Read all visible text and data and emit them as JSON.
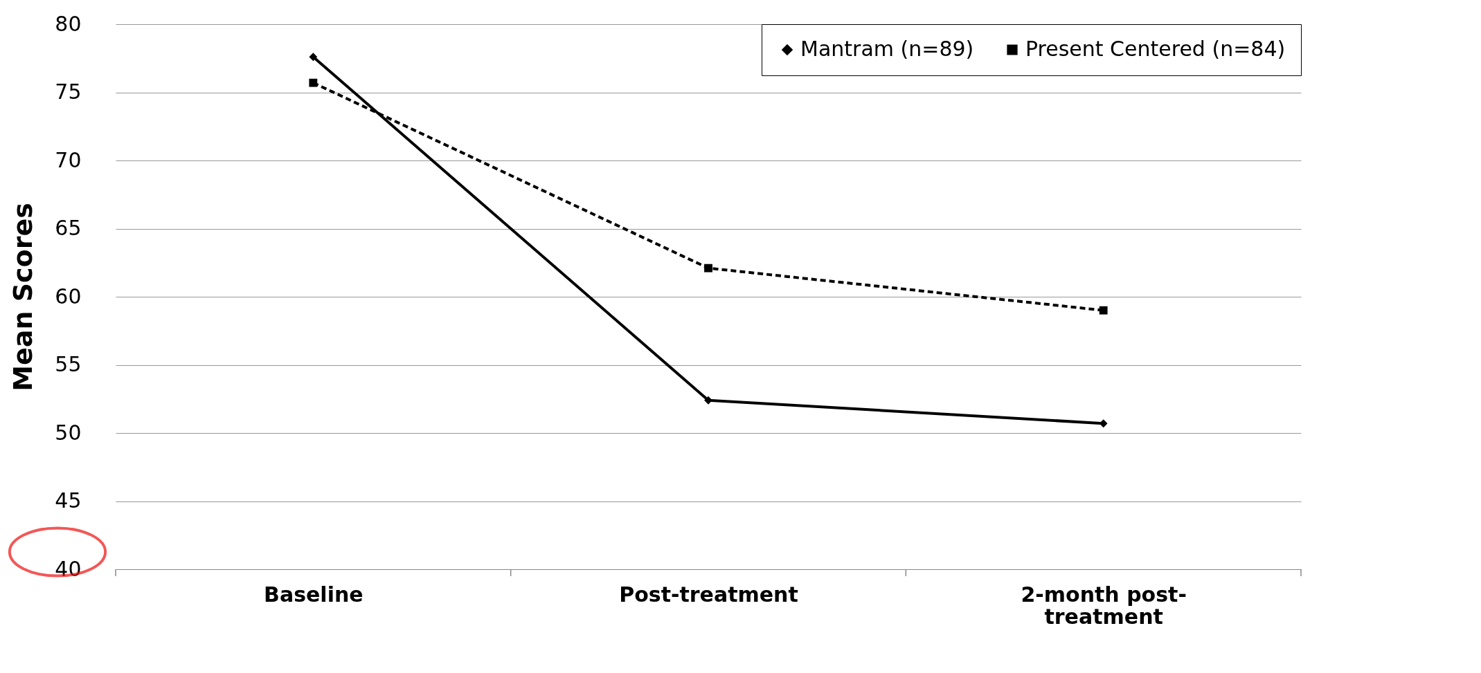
{
  "chart_data": {
    "type": "line",
    "ylabel": "Mean Scores",
    "categories": [
      "Baseline",
      "Post-treatment",
      "2-month post-treatment"
    ],
    "series": [
      {
        "name": "Mantram (n=89)",
        "color": "#000000",
        "marker": "diamond",
        "line_style": "solid",
        "values": [
          77.6,
          52.4,
          50.7
        ]
      },
      {
        "name": "Present Centered (n=84)",
        "color": "#000000",
        "marker": "square",
        "line_style": "dashed",
        "values": [
          75.7,
          62.1,
          59.0
        ]
      }
    ],
    "ylim": [
      40,
      80
    ],
    "yticks": [
      40,
      45,
      50,
      55,
      60,
      65,
      70,
      75,
      80
    ],
    "grid": "y",
    "legend": "top right"
  }
}
